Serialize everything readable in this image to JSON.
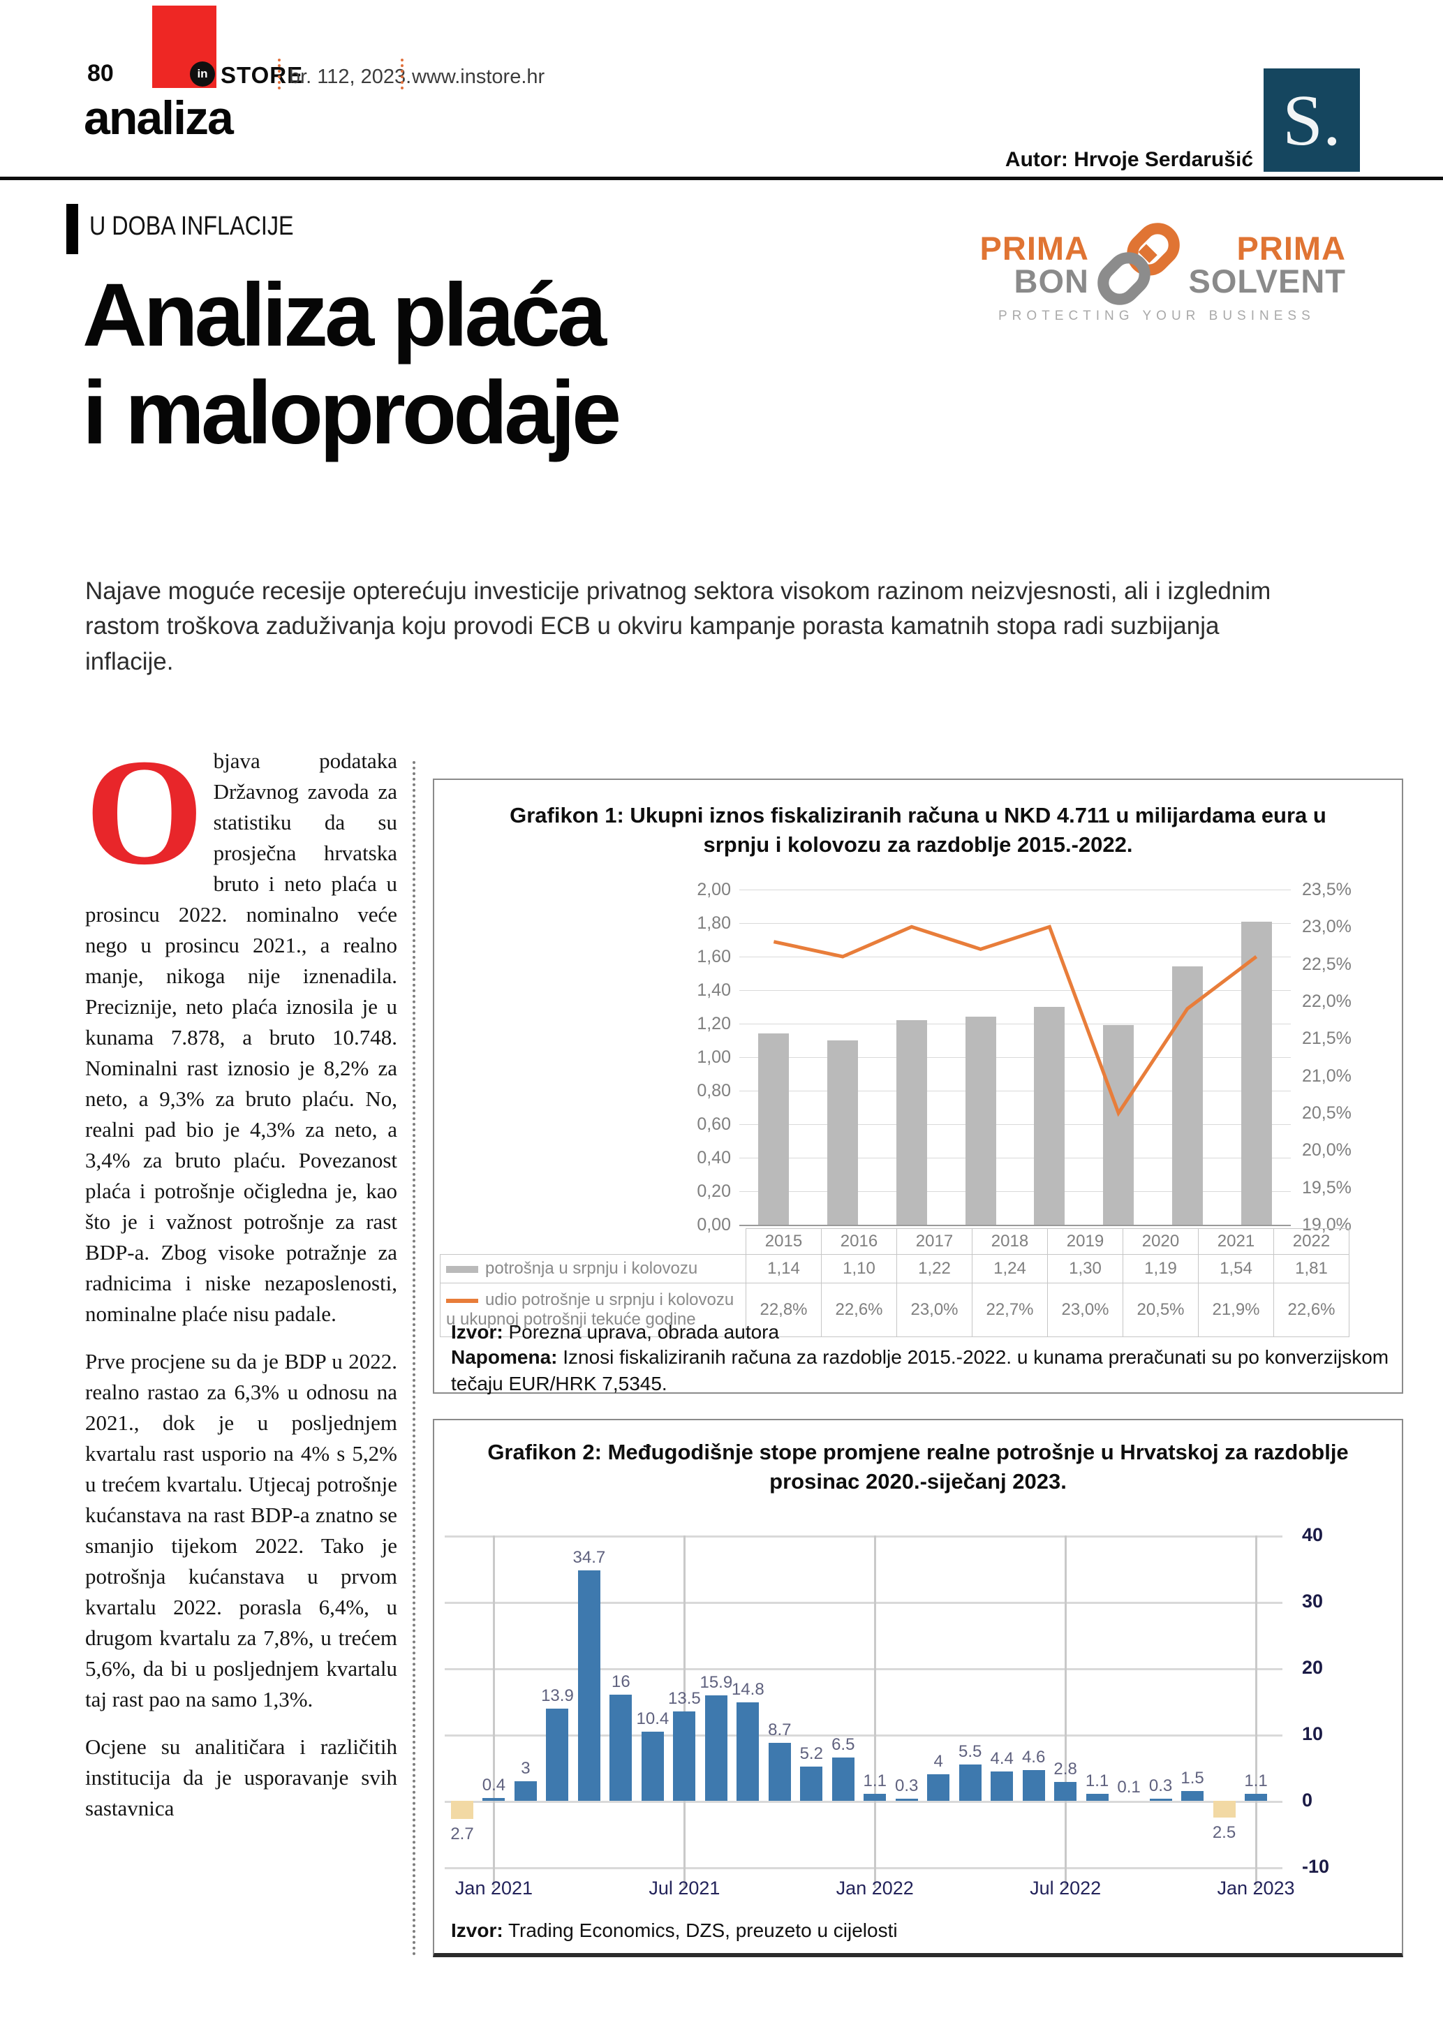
{
  "header": {
    "page_number": "80",
    "brand_in": "in",
    "brand_store": "STORE",
    "edition": "br. 112, 2023.",
    "website": "www.instore.hr",
    "section": "analiza",
    "author": "Autor: Hrvoje Serdarušić",
    "s_logo": "S."
  },
  "kicker": "U DOBA INFLACIJE",
  "prima_logo": {
    "prima_left": "PRIMA",
    "bon": "BON",
    "prima_right": "PRIMA",
    "solvent": "SOLVENT",
    "tagline": "PROTECTING YOUR BUSINESS",
    "orange": "#e07433",
    "gray": "#8a8a8a"
  },
  "headline": {
    "line1": "Analiza plaća",
    "line2": "i maloprodaje"
  },
  "intro": "Najave moguće recesije opterećuju investicije privatnog sektora visokom razinom neizvjesnosti, ali i izglednim rastom troškova zaduživanja koju provodi ECB u okviru kampanje porasta kamatnih stopa radi suzbijanja inflacije.",
  "article": {
    "dropcap": "O",
    "paragraphs": [
      "bjava podataka Državnog zavoda za statistiku da su prosječna hrvatska bruto i neto plaća u prosincu 2022. nominalno veće nego u prosincu 2021., a realno manje, nikoga nije iznenadila. Preciznije, neto plaća iznosila je u kunama 7.878, a bruto 10.748. Nominalni rast iznosio je 8,2% za neto, a 9,3% za bruto plaću. No, realni pad bio je 4,3% za neto, a 3,4% za bruto plaću. Povezanost plaća i potrošnje očigledna je, kao što je i važnost potrošnje za rast BDP-a. Zbog visoke potražnje za radnicima i niske nezaposlenosti, nominalne plaće nisu padale.",
      "Prve procjene su da je BDP u 2022. realno rastao za 6,3% u odnosu na 2021., dok je u posljednjem kvartalu rast usporio na 4% s 5,2% u trećem kvartalu. Utjecaj potrošnje kućanstava na rast BDP-a znatno se smanjio tijekom 2022. Tako je potrošnja kućanstava u prvom kvartalu 2022. porasla 6,4%, u drugom kvartalu za 7,8%, u trećem 5,6%, da bi u posljednjem kvartalu taj rast pao na samo 1,3%.",
      "Ocjene su analitičara i različitih institucija da je usporavanje svih sastavnica"
    ]
  },
  "chart_data": [
    {
      "id": "grafikon1",
      "type": "bar",
      "title": "Grafikon 1: Ukupni iznos fiskaliziranih računa u NKD 4.711 u milijardama eura u srpnju i kolovozu za razdoblje 2015.-2022.",
      "categories": [
        "2015",
        "2016",
        "2017",
        "2018",
        "2019",
        "2020",
        "2021",
        "2022"
      ],
      "series": [
        {
          "name": "potrošnja u srpnju i kolovozu",
          "type": "bar",
          "axis": "left",
          "color": "#bababa",
          "values": [
            1.14,
            1.1,
            1.22,
            1.24,
            1.3,
            1.19,
            1.54,
            1.81
          ],
          "labels": [
            "1,14",
            "1,10",
            "1,22",
            "1,24",
            "1,30",
            "1,19",
            "1,54",
            "1,81"
          ]
        },
        {
          "name": "udio potrošnje u srpnju i kolovozu u ukupnoj potrošnji tekuće godine",
          "type": "line",
          "axis": "right",
          "color": "#e87d3a",
          "values": [
            22.8,
            22.6,
            23.0,
            22.7,
            23.0,
            20.5,
            21.9,
            22.6
          ],
          "labels": [
            "22,8%",
            "22,6%",
            "23,0%",
            "22,7%",
            "23,0%",
            "20,5%",
            "21,9%",
            "22,6%"
          ]
        }
      ],
      "left_axis": {
        "min": 0,
        "max": 2,
        "tick_labels": [
          "2,00",
          "1,80",
          "1,60",
          "1,40",
          "1,20",
          "1,00",
          "0,80",
          "0,60",
          "0,40",
          "0,20",
          "0,00"
        ]
      },
      "right_axis": {
        "min": 19.0,
        "max": 23.5,
        "tick_labels": [
          "23,5%",
          "23,0%",
          "22,5%",
          "22,0%",
          "21,5%",
          "21,0%",
          "20,5%",
          "20,0%",
          "19,5%",
          "19,0%"
        ]
      },
      "grid": true,
      "legend_position": "table-left",
      "source_label": "Izvor:",
      "source_text": " Porezna uprava, obrada autora",
      "note_label": "Napomena:",
      "note_text": " Iznosi fiskaliziranih računa za razdoblje 2015.-2022. u kunama preračunati su po konverzijskom tečaju EUR/HRK 7,5345."
    },
    {
      "id": "grafikon2",
      "type": "bar",
      "title": "Grafikon 2: Međugodišnje stope promjene realne potrošnje u Hrvatskoj za razdoblje prosinac 2020.-siječanj 2023.",
      "values": [
        -2.7,
        0.4,
        3,
        13.9,
        34.7,
        16,
        10.4,
        13.5,
        15.9,
        14.8,
        8.7,
        5.2,
        6.5,
        1.1,
        0.3,
        4,
        5.5,
        4.4,
        4.6,
        2.8,
        1.1,
        0.1,
        0.3,
        1.5,
        -2.5,
        1.1
      ],
      "bar_labels": [
        "2.7",
        "0.4",
        "3",
        "13.9",
        "34.7",
        "16",
        "10.4",
        "13.5",
        "15.9",
        "14.8",
        "8.7",
        "5.2",
        "6.5",
        "1.1",
        "0.3",
        "4",
        "5.5",
        "4.4",
        "4.6",
        "2.8",
        "1.1",
        "0.1",
        "0.3",
        "1.5",
        "2.5",
        "1.1"
      ],
      "x_tick_indices": [
        1,
        7,
        13,
        19,
        25
      ],
      "x_tick_labels": [
        "Jan 2021",
        "Jul 2021",
        "Jan 2022",
        "Jul 2022",
        "Jan 2023"
      ],
      "y_axis": {
        "min": -10,
        "max": 40,
        "tick_labels": [
          "40",
          "30",
          "20",
          "10",
          "0",
          "-10"
        ],
        "position": "right"
      },
      "grid": true,
      "positive_color": "#3e79ae",
      "negative_color": "#f2d9a4",
      "label_color": "#5f617e",
      "source_label": "Izvor:",
      "source_text": " Trading Economics, DZS, preuzeto u cijelosti"
    }
  ]
}
